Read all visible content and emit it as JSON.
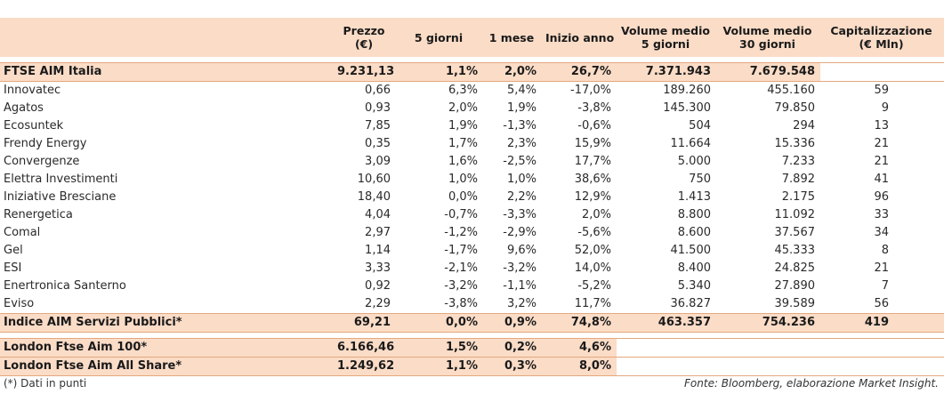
{
  "headers": {
    "prezzo": "Prezzo\n(€)",
    "g5": "5 giorni",
    "m1": "1 mese",
    "ia": "Inizio anno",
    "v5": "Volume medio\n5 giorni",
    "v30": "Volume medio\n30 giorni",
    "cap": "Capitalizzazione\n(€ Mln)"
  },
  "ftse_row": {
    "name": "FTSE AIM Italia",
    "prezzo": "9.231,13",
    "g5": "1,1%",
    "m1": "2,0%",
    "ia": "26,7%",
    "v5": "7.371.943",
    "v30": "7.679.548",
    "cap": ""
  },
  "stocks": [
    {
      "name": "Innovatec",
      "prezzo": "0,66",
      "g5": "6,3%",
      "m1": "5,4%",
      "ia": "-17,0%",
      "v5": "189.260",
      "v30": "455.160",
      "cap": "59"
    },
    {
      "name": "Agatos",
      "prezzo": "0,93",
      "g5": "2,0%",
      "m1": "1,9%",
      "ia": "-3,8%",
      "v5": "145.300",
      "v30": "79.850",
      "cap": "9"
    },
    {
      "name": "Ecosuntek",
      "prezzo": "7,85",
      "g5": "1,9%",
      "m1": "-1,3%",
      "ia": "-0,6%",
      "v5": "504",
      "v30": "294",
      "cap": "13"
    },
    {
      "name": "Frendy Energy",
      "prezzo": "0,35",
      "g5": "1,7%",
      "m1": "2,3%",
      "ia": "15,9%",
      "v5": "11.664",
      "v30": "15.336",
      "cap": "21"
    },
    {
      "name": "Convergenze",
      "prezzo": "3,09",
      "g5": "1,6%",
      "m1": "-2,5%",
      "ia": "17,7%",
      "v5": "5.000",
      "v30": "7.233",
      "cap": "21"
    },
    {
      "name": "Elettra Investimenti",
      "prezzo": "10,60",
      "g5": "1,0%",
      "m1": "1,0%",
      "ia": "38,6%",
      "v5": "750",
      "v30": "7.892",
      "cap": "41"
    },
    {
      "name": "Iniziative Bresciane",
      "prezzo": "18,40",
      "g5": "0,0%",
      "m1": "2,2%",
      "ia": "12,9%",
      "v5": "1.413",
      "v30": "2.175",
      "cap": "96"
    },
    {
      "name": "Renergetica",
      "prezzo": "4,04",
      "g5": "-0,7%",
      "m1": "-3,3%",
      "ia": "2,0%",
      "v5": "8.800",
      "v30": "11.092",
      "cap": "33"
    },
    {
      "name": "Comal",
      "prezzo": "2,97",
      "g5": "-1,2%",
      "m1": "-2,9%",
      "ia": "-5,6%",
      "v5": "8.600",
      "v30": "37.567",
      "cap": "34"
    },
    {
      "name": "Gel",
      "prezzo": "1,14",
      "g5": "-1,7%",
      "m1": "9,6%",
      "ia": "52,0%",
      "v5": "41.500",
      "v30": "45.333",
      "cap": "8"
    },
    {
      "name": "ESI",
      "prezzo": "3,33",
      "g5": "-2,1%",
      "m1": "-3,2%",
      "ia": "14,0%",
      "v5": "8.400",
      "v30": "24.825",
      "cap": "21"
    },
    {
      "name": "Enertronica Santerno",
      "prezzo": "0,92",
      "g5": "-3,2%",
      "m1": "-1,1%",
      "ia": "-5,2%",
      "v5": "5.340",
      "v30": "27.890",
      "cap": "7"
    },
    {
      "name": "Eviso",
      "prezzo": "2,29",
      "g5": "-3,8%",
      "m1": "3,2%",
      "ia": "11,7%",
      "v5": "36.827",
      "v30": "39.589",
      "cap": "56"
    }
  ],
  "index_row": {
    "name": "Indice AIM Servizi Pubblici*",
    "prezzo": "69,21",
    "g5": "0,0%",
    "m1": "0,9%",
    "ia": "74,8%",
    "v5": "463.357",
    "v30": "754.236",
    "cap": "419"
  },
  "london_rows": [
    {
      "name": "London Ftse Aim 100*",
      "prezzo": "6.166,46",
      "g5": "1,5%",
      "m1": "0,2%",
      "ia": "4,6%"
    },
    {
      "name": "London Ftse Aim All Share*",
      "prezzo": "1.249,62",
      "g5": "1,1%",
      "m1": "0,3%",
      "ia": "8,0%"
    }
  ],
  "footer": {
    "note": "(*) Dati in punti",
    "source": "Fonte: Bloomberg, elaborazione Market Insight."
  }
}
